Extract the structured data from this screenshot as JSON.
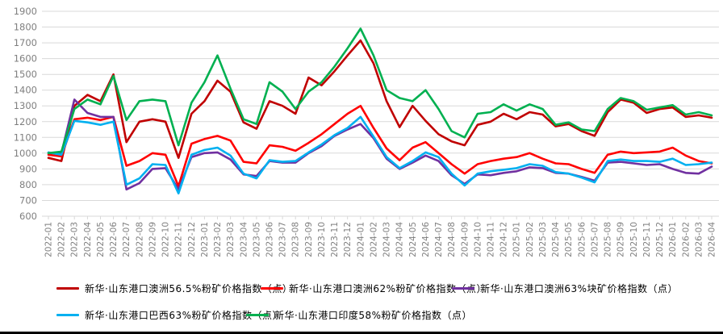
{
  "chart_data": {
    "type": "line",
    "title": "",
    "xlabel": "",
    "ylabel": "",
    "ylim": [
      600,
      1900
    ],
    "y_tick_step": 100,
    "grid": true,
    "legend_position": "bottom",
    "x_labels": [
      "2022-01",
      "2022-02",
      "2022-03",
      "2022-04",
      "2022-05",
      "2022-06",
      "2022-07",
      "2022-08",
      "2022-09",
      "2022-10",
      "2022-11",
      "2022-12",
      "2023-01",
      "2023-02",
      "2023-03",
      "2023-04",
      "2023-05",
      "2023-06",
      "2023-07",
      "2023-08",
      "2023-09",
      "2023-10",
      "2023-11",
      "2023-12",
      "2024-01",
      "2024-02",
      "2024-03",
      "2024-04",
      "2024-05",
      "2024-06",
      "2024-07",
      "2024-08",
      "2024-09",
      "2024-10",
      "2024-11",
      "2024-12",
      "2025-01",
      "2025-02",
      "2025-03",
      "2025-04",
      "2025-05",
      "2025-06",
      "2025-07",
      "2025-08",
      "2025-09",
      "2025-10",
      "2025-11",
      "2025-12",
      "2026-01",
      "2026-02",
      "2026-03",
      "2026-04"
    ],
    "series": [
      {
        "name": "新华·山东港口澳洲56.5%粉矿价格指数（点）",
        "color": "#C00000",
        "values": [
          970,
          950,
          1300,
          1370,
          1330,
          1500,
          1070,
          1200,
          1215,
          1200,
          970,
          1250,
          1330,
          1460,
          1390,
          1195,
          1155,
          1330,
          1300,
          1250,
          1480,
          1430,
          1520,
          1620,
          1715,
          1570,
          1330,
          1165,
          1300,
          1205,
          1120,
          1075,
          1050,
          1180,
          1200,
          1250,
          1215,
          1260,
          1245,
          1170,
          1185,
          1140,
          1110,
          1260,
          1340,
          1320,
          1255,
          1280,
          1290,
          1230,
          1240,
          1225
        ]
      },
      {
        "name": "新华·山东港口澳洲62%粉矿价格指数（点）",
        "color": "#FF0000",
        "values": [
          990,
          980,
          1215,
          1225,
          1210,
          1230,
          920,
          950,
          1000,
          990,
          790,
          1060,
          1090,
          1110,
          1080,
          945,
          935,
          1050,
          1040,
          1015,
          1065,
          1120,
          1185,
          1250,
          1300,
          1160,
          1030,
          955,
          1035,
          1070,
          1000,
          930,
          870,
          930,
          950,
          965,
          975,
          1000,
          965,
          935,
          930,
          900,
          875,
          990,
          1010,
          1000,
          1005,
          1010,
          1035,
          985,
          950,
          935
        ]
      },
      {
        "name": "新华·山东港口澳洲63%块矿价格指数（点）",
        "color": "#7030A0",
        "values": [
          1000,
          1000,
          1340,
          1255,
          1230,
          1230,
          770,
          810,
          900,
          905,
          770,
          975,
          1000,
          1005,
          960,
          865,
          855,
          950,
          940,
          940,
          1000,
          1045,
          1110,
          1150,
          1185,
          1095,
          965,
          900,
          940,
          985,
          950,
          860,
          805,
          865,
          860,
          875,
          885,
          910,
          905,
          875,
          870,
          850,
          825,
          940,
          945,
          935,
          925,
          930,
          900,
          875,
          870,
          915
        ]
      },
      {
        "name": "新华·山东港口巴西63%粉矿价格指数（点）",
        "color": "#00B0F0",
        "values": [
          1005,
          990,
          1205,
          1195,
          1180,
          1200,
          800,
          840,
          930,
          925,
          745,
          990,
          1020,
          1035,
          985,
          870,
          840,
          955,
          945,
          950,
          1005,
          1055,
          1115,
          1160,
          1230,
          1105,
          975,
          905,
          950,
          1005,
          975,
          870,
          795,
          870,
          885,
          895,
          905,
          930,
          920,
          880,
          870,
          845,
          815,
          950,
          960,
          950,
          950,
          945,
          965,
          925,
          930,
          940
        ]
      },
      {
        "name": "新华·山东港口印度58%粉矿价格指数（点）",
        "color": "#00B050",
        "values": [
          1000,
          1010,
          1280,
          1340,
          1310,
          1490,
          1210,
          1330,
          1340,
          1330,
          1050,
          1320,
          1450,
          1620,
          1410,
          1215,
          1185,
          1450,
          1390,
          1280,
          1390,
          1450,
          1550,
          1665,
          1790,
          1620,
          1400,
          1350,
          1330,
          1400,
          1280,
          1140,
          1100,
          1250,
          1260,
          1310,
          1270,
          1310,
          1280,
          1180,
          1195,
          1150,
          1140,
          1280,
          1350,
          1330,
          1275,
          1290,
          1305,
          1245,
          1260,
          1240
        ]
      }
    ],
    "colors": {
      "grid": "#D9D9D9",
      "tick_text": "#7F7F7F",
      "legend_text": "#000000",
      "bottom_border": "#000000"
    }
  }
}
